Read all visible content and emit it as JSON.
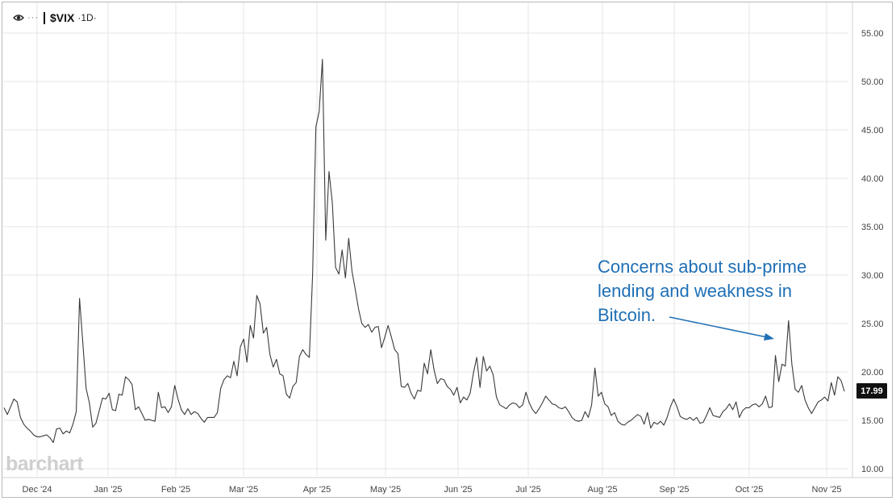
{
  "header": {
    "symbol": "$VIX",
    "interval": "·1D·",
    "icons": [
      "eye-icon",
      "more-dots-icon"
    ]
  },
  "logo": {
    "text": "barchart"
  },
  "annotation": {
    "text": "Concerns about sub-prime lending and weakness in Bitcoin.",
    "color": "#1f6fb5"
  },
  "price_badge": {
    "value": "17.99"
  },
  "chart_data": {
    "type": "line",
    "y_ticks": [
      "10.00",
      "15.00",
      "20.00",
      "25.00",
      "30.00",
      "35.00",
      "40.00",
      "45.00",
      "50.00",
      "55.00"
    ],
    "ylim": [
      9,
      57.5
    ],
    "x_ticks": [
      "Dec '24",
      "Jan '25",
      "Feb '25",
      "Mar '25",
      "Apr '25",
      "May '25",
      "Jun '25",
      "Jul '25",
      "Aug '25",
      "Sep '25",
      "Oct '25",
      "Nov '25"
    ],
    "grid": true,
    "line_color": "#3a3a3a",
    "series": [
      {
        "values": [
          16.3,
          15.6,
          16.4,
          17.2,
          16.9,
          15.3,
          14.6,
          14.2,
          13.9,
          13.5,
          13.3,
          13.3,
          13.4,
          13.5,
          13.2,
          12.7,
          14.1,
          14.2,
          13.6,
          13.9,
          13.7,
          14.6,
          15.9,
          27.6,
          23.0,
          18.3,
          16.8,
          14.3,
          14.7,
          16.0,
          17.3,
          17.2,
          17.8,
          16.1,
          16.0,
          17.7,
          17.6,
          19.5,
          19.2,
          18.7,
          16.1,
          16.4,
          15.7,
          15.0,
          15.1,
          15.0,
          14.9,
          17.9,
          16.3,
          16.4,
          15.8,
          16.4,
          18.6,
          17.2,
          16.1,
          15.6,
          16.2,
          15.6,
          15.9,
          15.7,
          15.2,
          14.8,
          15.3,
          15.3,
          15.3,
          15.8,
          18.3,
          19.2,
          19.6,
          19.4,
          21.1,
          19.6,
          22.6,
          23.4,
          21.0,
          24.8,
          23.5,
          27.9,
          27.0,
          24.0,
          24.6,
          21.8,
          20.5,
          21.3,
          19.8,
          19.6,
          17.7,
          17.3,
          18.5,
          18.9,
          21.6,
          22.3,
          21.8,
          21.5,
          30.0,
          45.3,
          46.9,
          52.3,
          33.6,
          40.7,
          37.5,
          30.8,
          30.1,
          32.6,
          29.7,
          33.8,
          30.4,
          28.5,
          26.5,
          25.0,
          24.6,
          24.9,
          24.1,
          24.6,
          24.7,
          22.5,
          23.6,
          24.8,
          23.6,
          22.3,
          21.9,
          18.5,
          18.4,
          18.8,
          17.8,
          17.2,
          18.1,
          18.0,
          20.9,
          19.8,
          22.3,
          20.2,
          18.8,
          19.3,
          19.2,
          18.5,
          18.2,
          17.6,
          18.4,
          16.8,
          17.4,
          17.1,
          17.8,
          19.9,
          21.5,
          18.4,
          21.6,
          20.1,
          20.6,
          19.7,
          17.4,
          16.6,
          16.4,
          16.2,
          16.6,
          16.8,
          16.7,
          16.3,
          16.6,
          17.9,
          16.8,
          16.1,
          15.7,
          16.2,
          16.8,
          17.5,
          17.1,
          16.7,
          16.6,
          16.3,
          16.2,
          16.4,
          15.9,
          15.3,
          15.0,
          14.9,
          15.0,
          15.9,
          15.3,
          16.6,
          20.4,
          17.5,
          17.9,
          16.7,
          16.4,
          15.5,
          15.8,
          14.9,
          14.6,
          14.5,
          14.8,
          15.0,
          15.3,
          15.6,
          15.4,
          14.6,
          15.8,
          14.2,
          14.8,
          14.6,
          14.9,
          14.5,
          15.3,
          16.4,
          17.2,
          16.4,
          15.4,
          15.2,
          15.1,
          15.3,
          15.0,
          15.3,
          14.7,
          14.8,
          15.5,
          16.3,
          15.5,
          15.4,
          15.3,
          15.9,
          16.2,
          16.7,
          16.1,
          16.9,
          15.3,
          16.0,
          16.3,
          16.3,
          16.6,
          16.7,
          16.4,
          16.7,
          17.5,
          16.3,
          16.4,
          21.7,
          19.0,
          20.8,
          20.6,
          25.3,
          20.8,
          18.2,
          17.9,
          18.6,
          17.1,
          16.3,
          15.7,
          16.3,
          16.9,
          17.1,
          17.4,
          17.0,
          18.9,
          17.6,
          19.5,
          19.1,
          17.99
        ]
      }
    ]
  }
}
